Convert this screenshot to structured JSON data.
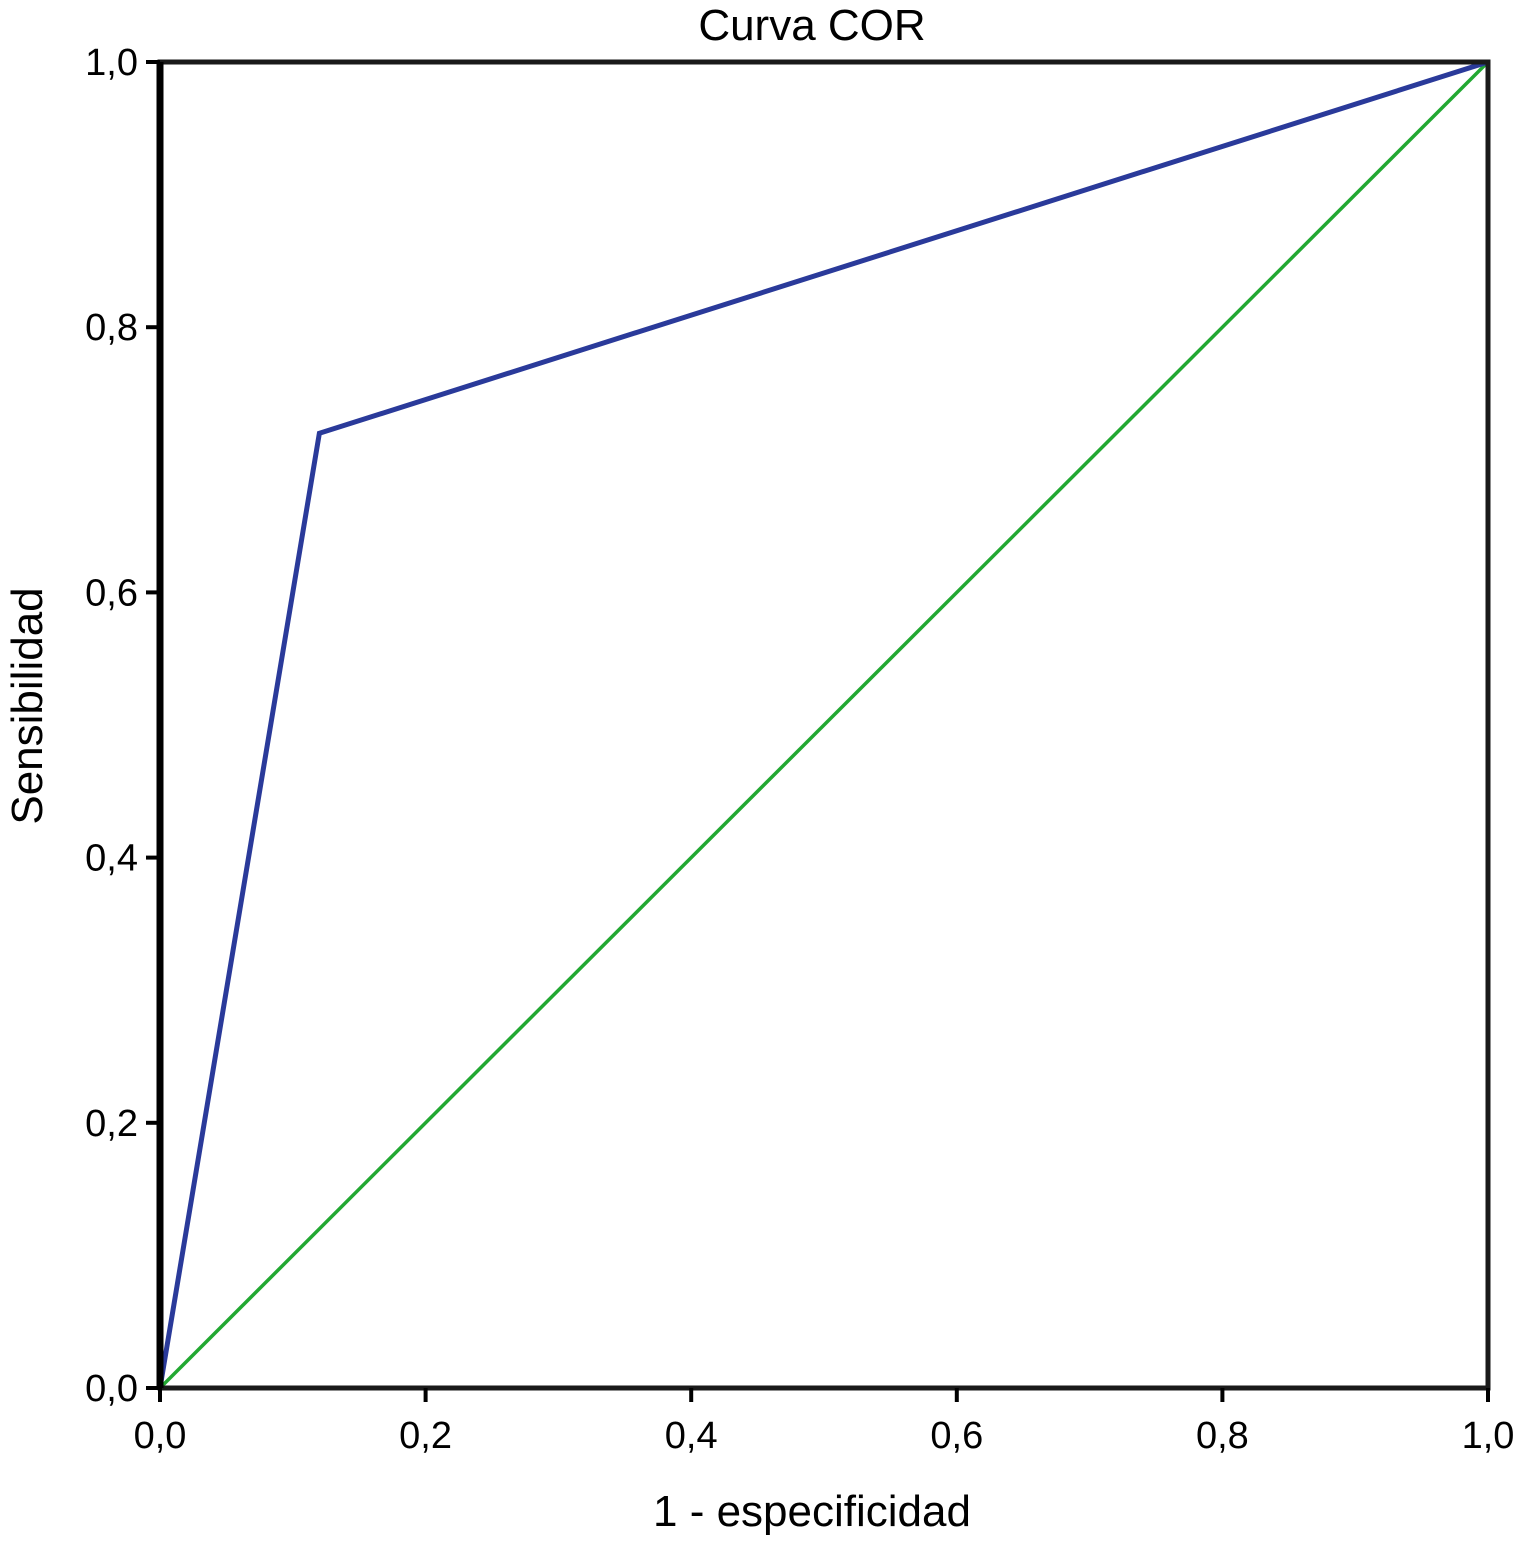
{
  "chart_data": {
    "type": "line",
    "title": "Curva COR",
    "xlabel": "1 - especificidad",
    "ylabel": "Sensibilidad",
    "xlim": [
      0,
      1
    ],
    "ylim": [
      0,
      1
    ],
    "x_ticks": [
      "0,0",
      "0,2",
      "0,4",
      "0,6",
      "0,8",
      "1,0"
    ],
    "y_ticks": [
      "0,0",
      "0,2",
      "0,4",
      "0,6",
      "0,8",
      "1,0"
    ],
    "grid": false,
    "series": [
      {
        "color": "#2a3a9a",
        "points": [
          [
            0,
            0
          ],
          [
            0.12,
            0.72
          ],
          [
            1,
            1
          ]
        ]
      },
      {
        "color": "#22a832",
        "points": [
          [
            0,
            0
          ],
          [
            1,
            1
          ]
        ]
      }
    ]
  }
}
